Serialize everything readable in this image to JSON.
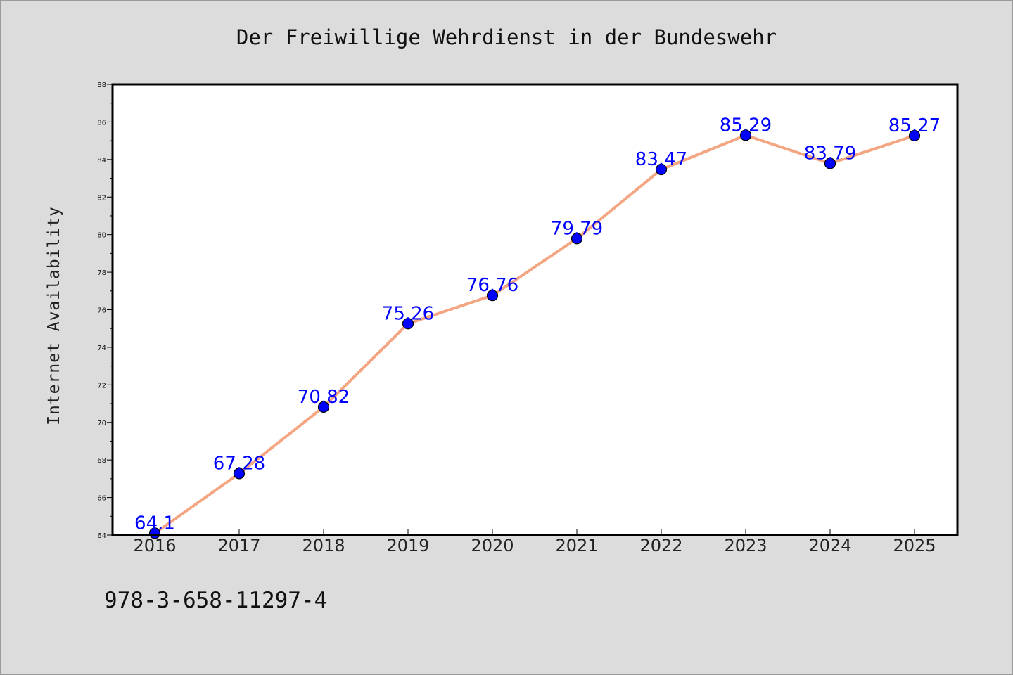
{
  "chart_data": {
    "type": "line",
    "title": "Der Freiwillige Wehrdienst in der Bundeswehr",
    "xlabel": "",
    "ylabel": "Internet Availability",
    "categories": [
      "2016",
      "2017",
      "2018",
      "2019",
      "2020",
      "2021",
      "2022",
      "2023",
      "2024",
      "2025"
    ],
    "series": [
      {
        "values": [
          64.1,
          67.28,
          70.82,
          75.26,
          76.76,
          79.79,
          83.47,
          85.29,
          83.79,
          85.27
        ],
        "line_color": "#f4a582",
        "marker_color": "#0000ff"
      }
    ],
    "data_labels": [
      "64.1",
      "67.28",
      "70.82",
      "75.26",
      "76.76",
      "79.79",
      "83.47",
      "85.29",
      "83.79",
      "85.27"
    ],
    "ylim": [
      64,
      88
    ],
    "yticks": [
      64,
      66,
      68,
      70,
      72,
      74,
      76,
      78,
      80,
      82,
      84,
      86,
      88
    ],
    "grid": false,
    "legend": "none"
  },
  "footer": {
    "code": "978-3-658-11297-4"
  },
  "colors": {
    "background": "#dcdcdc",
    "plot_background": "#ffffff",
    "label_color": "#0000ff"
  }
}
